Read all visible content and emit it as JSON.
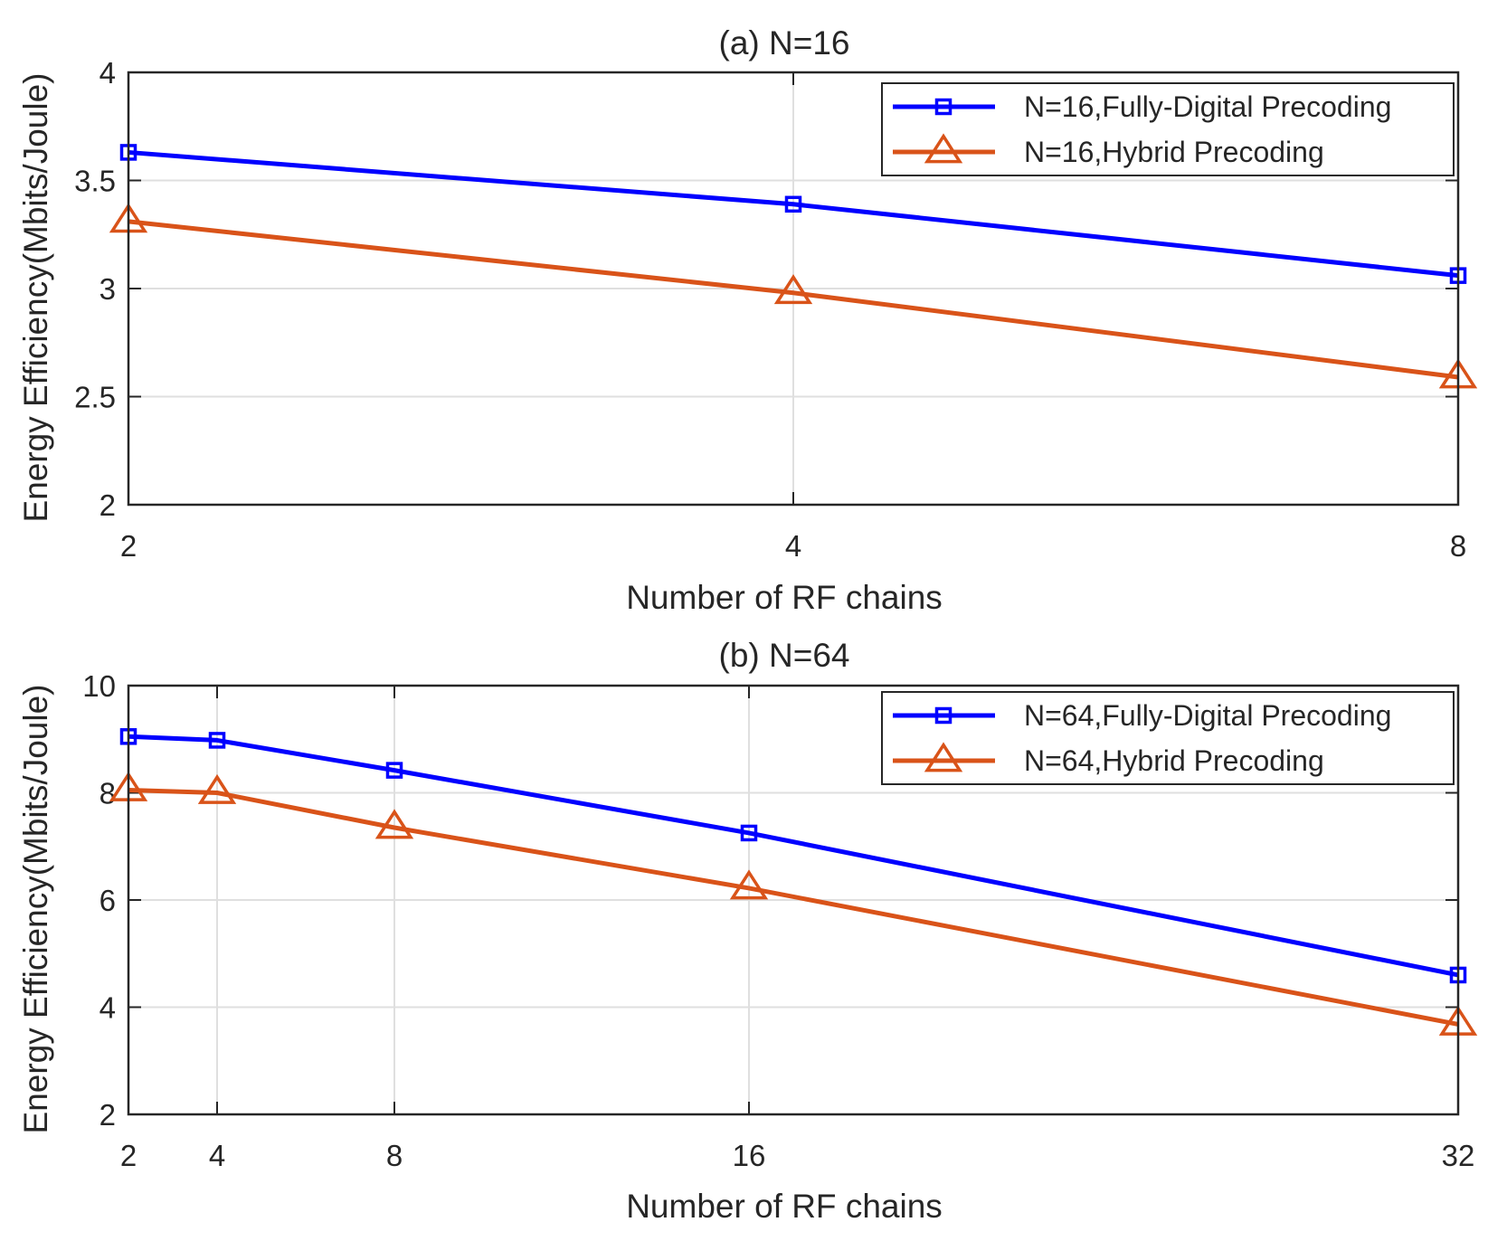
{
  "chart_data": [
    {
      "type": "line",
      "title": "(a) N=16",
      "xlabel": "Number of RF chains",
      "ylabel": "Energy Efficiency(Mbits/Joule)",
      "x_scale": "log2",
      "xlim": [
        2,
        8
      ],
      "ylim": [
        2,
        4
      ],
      "xticks": [
        2,
        4,
        8
      ],
      "xtick_labels": [
        "2",
        "4",
        "8"
      ],
      "yticks": [
        2,
        2.5,
        3,
        3.5,
        4
      ],
      "ytick_labels": [
        "2",
        "2.5",
        "3",
        "3.5",
        "4"
      ],
      "grid": true,
      "legend_position": "top-right",
      "series": [
        {
          "name": "N=16,Fully-Digital Precoding",
          "color": "#0000ff",
          "marker": "square",
          "x": [
            2,
            4,
            8
          ],
          "y": [
            3.63,
            3.39,
            3.06
          ]
        },
        {
          "name": "N=16,Hybrid Precoding",
          "color": "#d95319",
          "marker": "triangle",
          "x": [
            2,
            4,
            8
          ],
          "y": [
            3.31,
            2.98,
            2.59
          ]
        }
      ]
    },
    {
      "type": "line",
      "title": "(b) N=64",
      "xlabel": "Number of RF chains",
      "ylabel": "Energy Efficiency(Mbits/Joule)",
      "x_scale": "linear",
      "xlim": [
        2,
        32
      ],
      "ylim": [
        2,
        10
      ],
      "xticks": [
        2,
        4,
        8,
        16,
        32
      ],
      "xtick_labels": [
        "2",
        "4",
        "8",
        "16",
        "32"
      ],
      "yticks": [
        2,
        4,
        6,
        8,
        10
      ],
      "ytick_labels": [
        "2",
        "4",
        "6",
        "8",
        "10"
      ],
      "grid": true,
      "legend_position": "top-right",
      "series": [
        {
          "name": "N=64,Fully-Digital Precoding",
          "color": "#0000ff",
          "marker": "square",
          "x": [
            2,
            4,
            8,
            16,
            32
          ],
          "y": [
            9.05,
            8.98,
            8.42,
            7.25,
            4.6
          ]
        },
        {
          "name": "N=64,Hybrid Precoding",
          "color": "#d95319",
          "marker": "triangle",
          "x": [
            2,
            4,
            8,
            16,
            32
          ],
          "y": [
            8.05,
            8.0,
            7.35,
            6.22,
            3.68
          ]
        }
      ]
    }
  ]
}
